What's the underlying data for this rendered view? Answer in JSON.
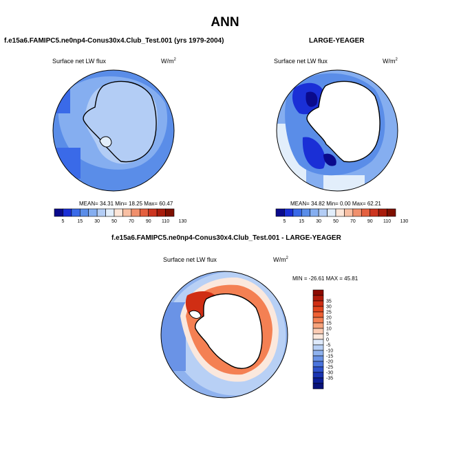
{
  "title": "ANN",
  "panels": [
    {
      "title": "f.e15a6.FAMIPC5.ne0np4-Conus30x4.Club_Test.001 (yrs 1979-2004)",
      "variable": "Surface net LW flux",
      "units": "W/m",
      "units_exp": "2",
      "stats": "MEAN= 34.31  Min= 18.25  Max= 60.47",
      "mean": 34.31,
      "min": 18.25,
      "max": 60.47
    },
    {
      "title": "LARGE-YEAGER",
      "variable": "Surface net LW flux",
      "units": "W/m",
      "units_exp": "2",
      "stats": "MEAN= 34.82  Min=  0.00  Max= 62.21",
      "mean": 34.82,
      "min": 0.0,
      "max": 62.21
    },
    {
      "title": "f.e15a6.FAMIPC5.ne0np4-Conus30x4.Club_Test.001 - LARGE-YEAGER",
      "variable": "Surface net LW flux",
      "units": "W/m",
      "units_exp": "2",
      "stats": "MIN = -26.61 MAX =  45.81",
      "min": -26.61,
      "max": 45.81
    }
  ],
  "colorbar_abs": {
    "ticks": [
      "5",
      "15",
      "30",
      "50",
      "70",
      "90",
      "110",
      "130"
    ],
    "colors": [
      "#0a0a8c",
      "#1a2fd6",
      "#3a6ae8",
      "#5a8de8",
      "#85aef0",
      "#b3cdf5",
      "#e2eefb",
      "#fde6d8",
      "#f8bfa3",
      "#f0906d",
      "#e4603f",
      "#cc3520",
      "#a81c0c",
      "#7e1000"
    ]
  },
  "colorbar_diff": {
    "ticks": [
      "35",
      "30",
      "25",
      "20",
      "15",
      "10",
      "5",
      "0",
      "-5",
      "-10",
      "-15",
      "-20",
      "-25",
      "-30",
      "-35"
    ],
    "colors": [
      "#8c0a00",
      "#b01a0a",
      "#d02e14",
      "#e4461f",
      "#ee6134",
      "#f48053",
      "#f7a47d",
      "#fbccb4",
      "#fbe8dd",
      "#dfeafb",
      "#b8d0f5",
      "#8fb2ee",
      "#6a93e6",
      "#4a74dd",
      "#2e52cc",
      "#1a34b2",
      "#0c1e96",
      "#08127a"
    ]
  }
}
